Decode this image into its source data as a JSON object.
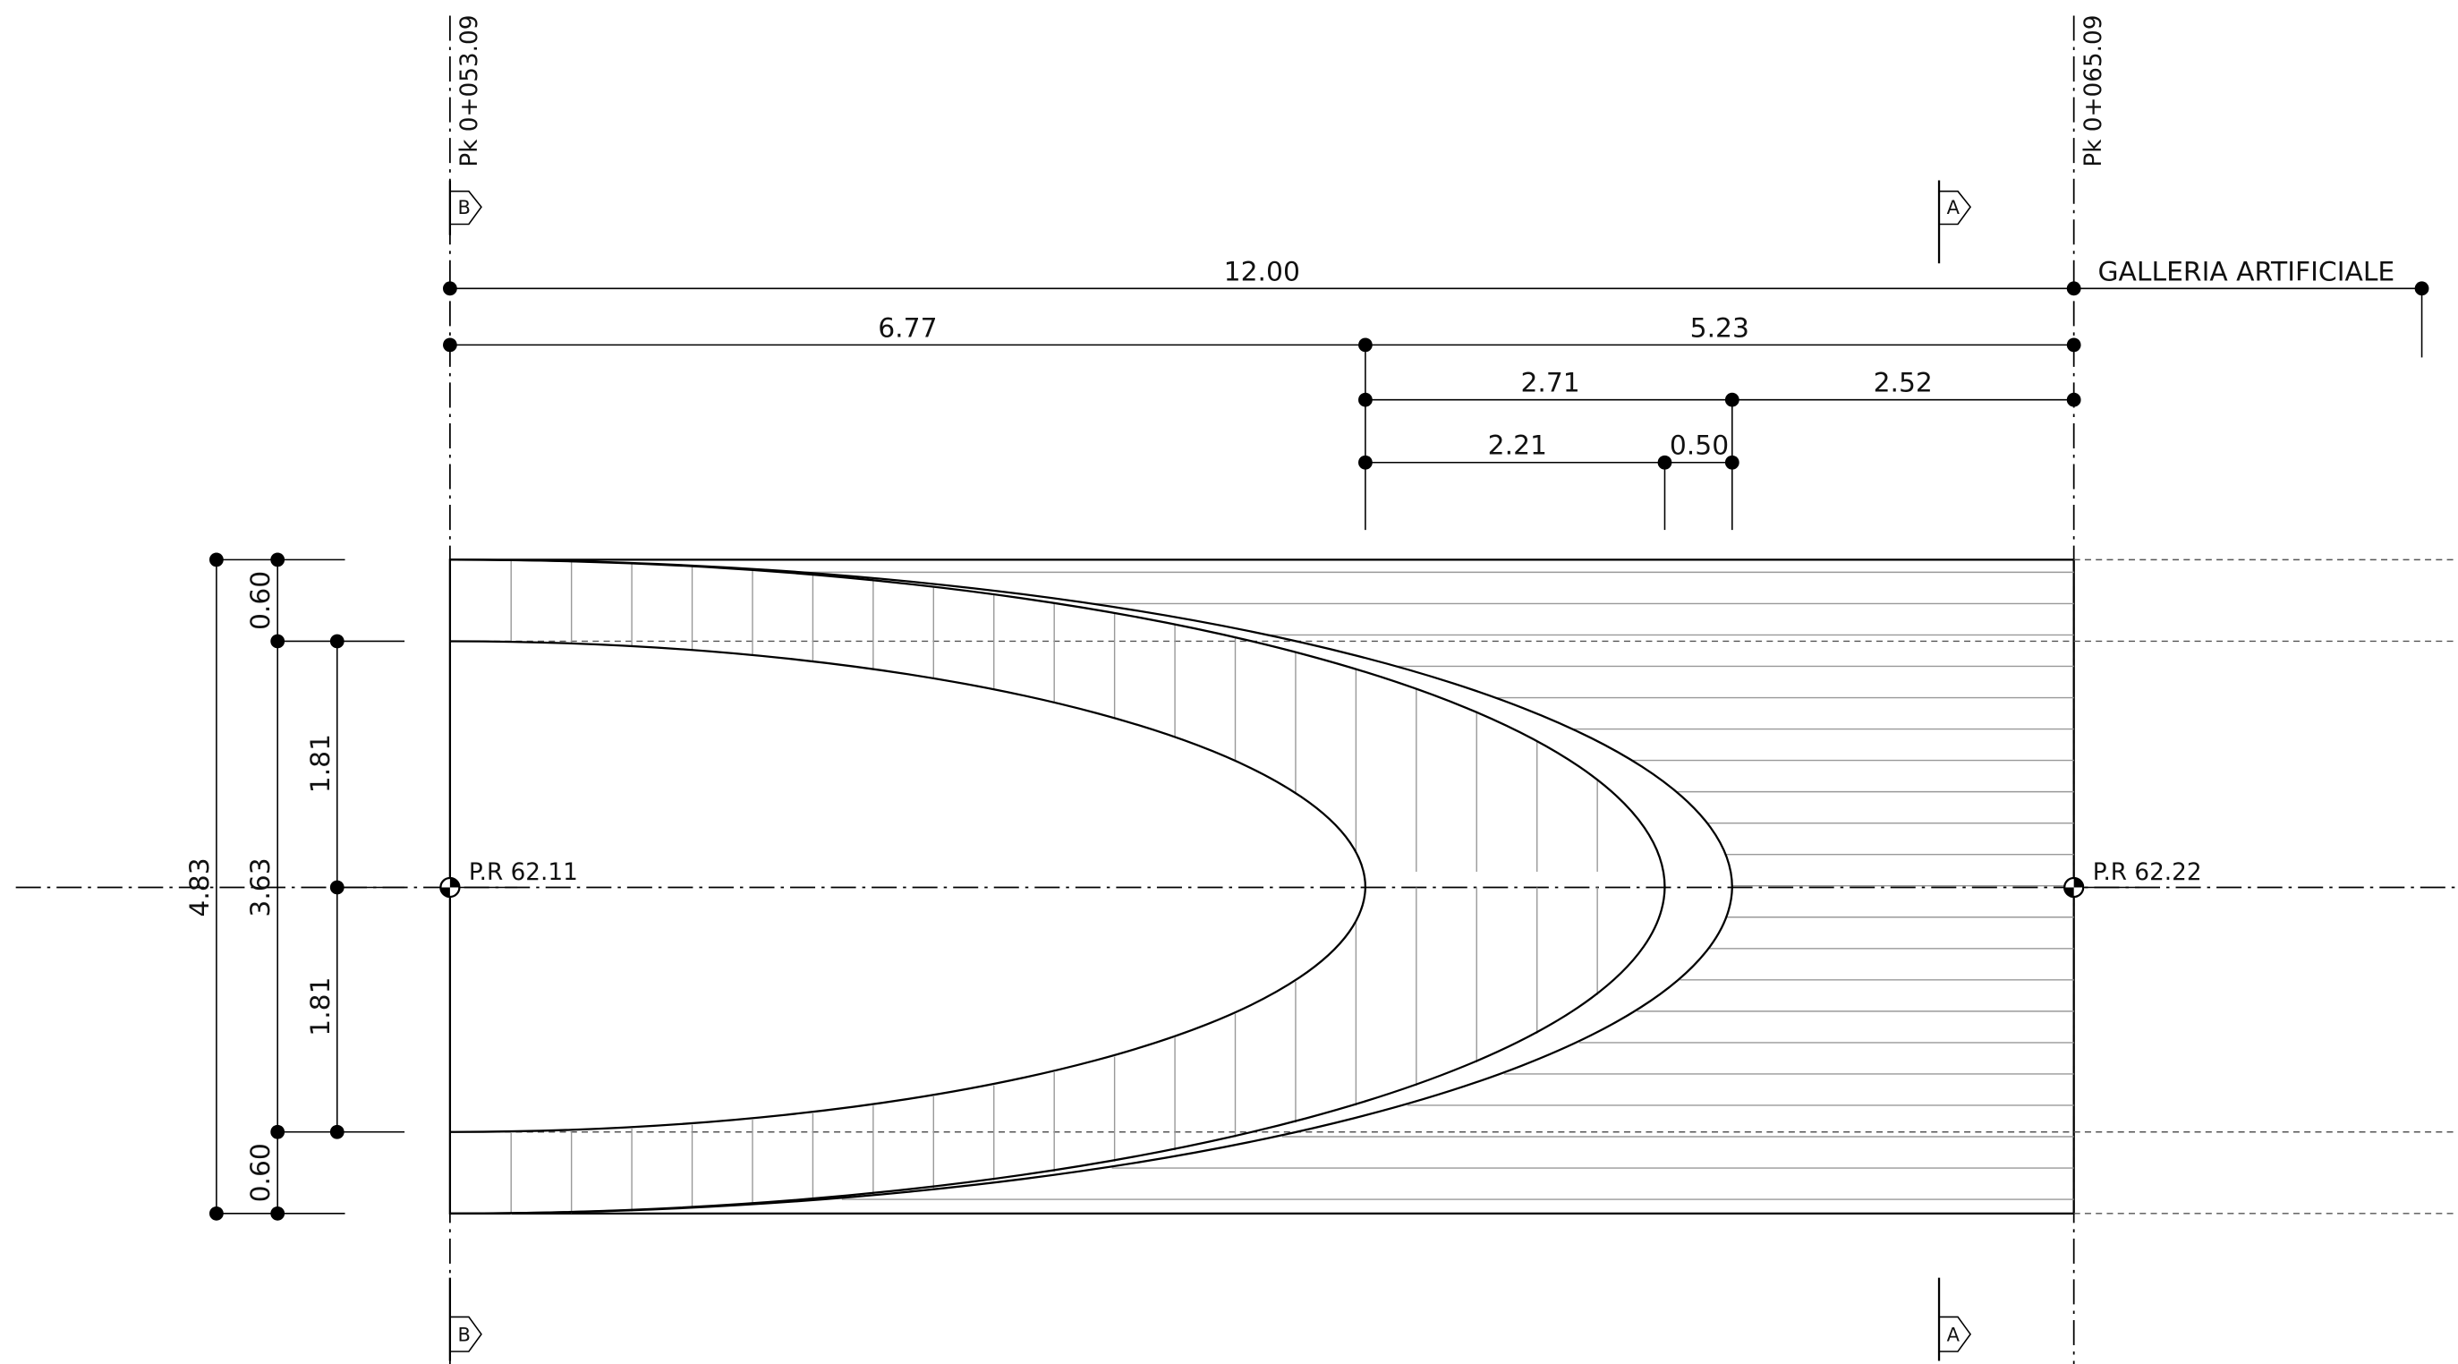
{
  "stations": [
    "Pk 0+053.09",
    "Pk 0+065.09"
  ],
  "section_markers": {
    "top": [
      "B",
      "A"
    ],
    "bottom": [
      "B",
      "A"
    ]
  },
  "dimensions_horizontal": [
    "12.00",
    "6.77",
    "5.23",
    "2.71",
    "2.52",
    "2.21",
    "0.50"
  ],
  "gallery_label": "GALLERIA ARTIFICIALE",
  "dimensions_vertical": [
    "0.60",
    "1.81",
    "3.63",
    "4.83",
    "1.81",
    "0.60"
  ],
  "reference_points": [
    "P.R 62.11",
    "P.R 62.22"
  ]
}
